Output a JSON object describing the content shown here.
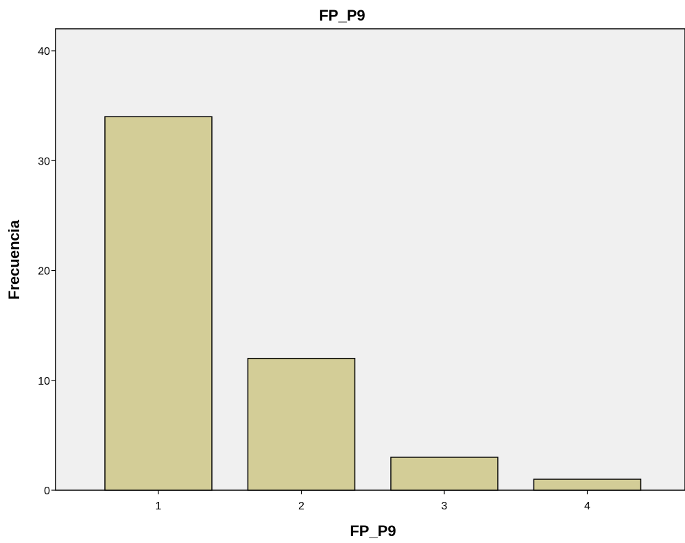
{
  "chart_data": {
    "type": "bar",
    "title": "FP_P9",
    "xlabel": "FP_P9",
    "ylabel": "Frecuencia",
    "categories": [
      "1",
      "2",
      "3",
      "4"
    ],
    "values": [
      34,
      12,
      3,
      1
    ],
    "ylim": [
      0,
      42
    ],
    "yticks": [
      0,
      10,
      20,
      30,
      40
    ],
    "grid": false,
    "legend": "none",
    "colors": {
      "bar_fill": "#D3CD97",
      "bar_stroke": "#000000",
      "plot_background": "#F0F0F0"
    }
  }
}
